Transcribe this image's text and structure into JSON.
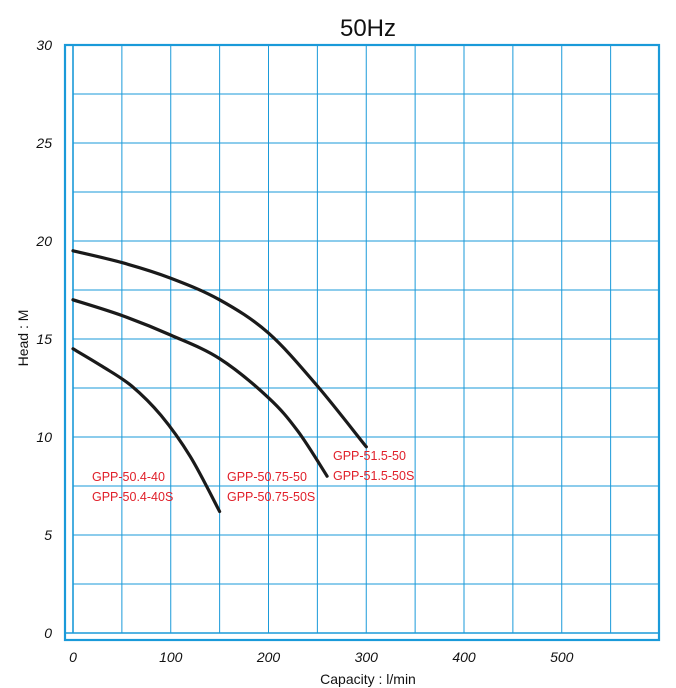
{
  "chart_data": {
    "type": "line",
    "title": "50Hz",
    "xlabel": "Capacity : l/min",
    "ylabel": "Head : M",
    "xlim": [
      0,
      600
    ],
    "ylim": [
      0,
      30
    ],
    "x_ticks": [
      "0",
      "100",
      "200",
      "300",
      "400",
      "500"
    ],
    "y_ticks": [
      "0",
      "5",
      "10",
      "15",
      "20",
      "25",
      "30"
    ],
    "grid": true,
    "colors": {
      "grid": "#1a9ad9",
      "curve": "#1a1a1a",
      "label": "#e0202a",
      "text": "#111111"
    },
    "series": [
      {
        "labels": [
          "GPP-51.5-50",
          "GPP-51.5-50S"
        ],
        "x": [
          0,
          50,
          100,
          150,
          200,
          250,
          300
        ],
        "y": [
          19.5,
          18.9,
          18.1,
          17.0,
          15.3,
          12.6,
          9.5
        ]
      },
      {
        "labels": [
          "GPP-50.75-50",
          "GPP-50.75-50S"
        ],
        "x": [
          0,
          50,
          100,
          150,
          200,
          230,
          260
        ],
        "y": [
          17.0,
          16.2,
          15.2,
          14.0,
          12.0,
          10.3,
          8.0
        ]
      },
      {
        "labels": [
          "GPP-50.4-40",
          "GPP-50.4-40S"
        ],
        "x": [
          0,
          30,
          60,
          90,
          120,
          150
        ],
        "y": [
          14.5,
          13.6,
          12.6,
          11.1,
          9.0,
          6.2
        ]
      }
    ]
  }
}
